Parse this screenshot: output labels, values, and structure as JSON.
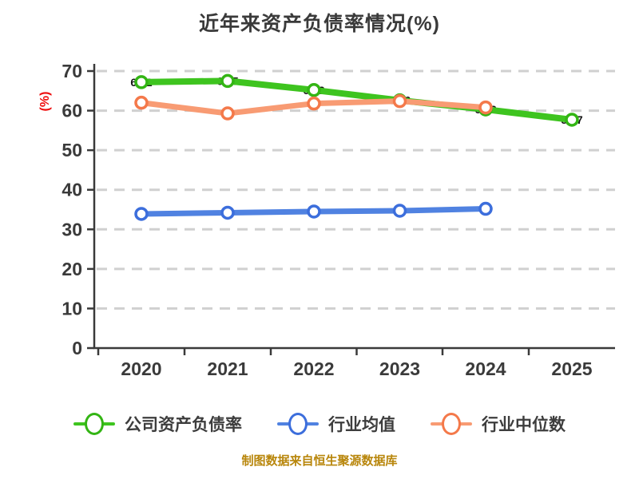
{
  "chart_data": {
    "type": "line",
    "title": "近年来资产负债率情况(%)",
    "ylabel": "(%)",
    "ylabel_color": "#ee0a0a",
    "categories": [
      "2020",
      "2021",
      "2022",
      "2023",
      "2024",
      "2025"
    ],
    "ylim": [
      0,
      70
    ],
    "yticks": [
      0,
      10,
      20,
      30,
      40,
      50,
      60,
      70
    ],
    "grid": "horizontal-dashed",
    "gridline_color": "#d0d0d0",
    "axis_color": "#3a3a3a",
    "legend_position": "bottom",
    "series": [
      {
        "name": "公司资产负债率",
        "line_color": "#3ec41f",
        "marker_color": "#33b514",
        "values": [
          67.2,
          67.5,
          65.2,
          62.6,
          60.3,
          57.7
        ],
        "point_labels_behind_line": true
      },
      {
        "name": "行业均值",
        "line_color": "#5082e1",
        "marker_color": "#3c6edc",
        "values": [
          33.9,
          34.2,
          34.5,
          34.7,
          35.2,
          null
        ],
        "point_labels_behind_line": false
      },
      {
        "name": "行业中位数",
        "line_color": "#f89b73",
        "marker_color": "#f4794a",
        "values": [
          62.0,
          59.3,
          61.8,
          62.4,
          60.8,
          null
        ],
        "point_labels_behind_line": false
      }
    ]
  },
  "footer": {
    "source_note": "制图数据来自恒生聚源数据库"
  }
}
